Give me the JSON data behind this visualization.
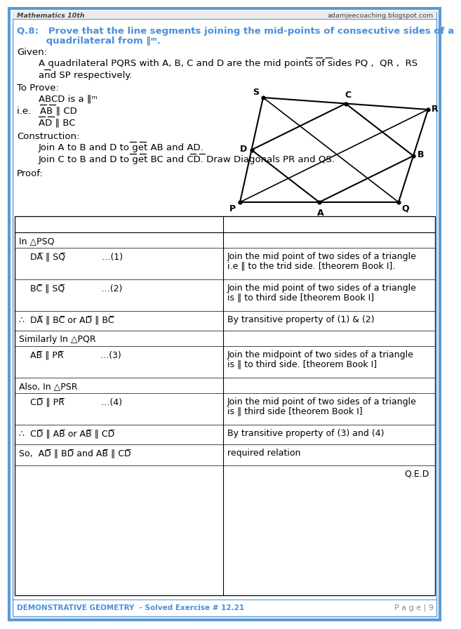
{
  "header_left": "Mathematics 10th",
  "header_right": "adamjeecoaching.blogspot.com",
  "footer_left": "DEMONSTRATIVE GEOMETRY  - Solved Exercise # 12.21",
  "footer_right": "P a g e | 9",
  "title_color": "#4a90d9",
  "border_color": "#5b9bd5",
  "bg_color": "#ffffff",
  "q_line1": "Q.8:   Prove that the line segments joining the mid-points of consecutive sides of a",
  "q_line2": "         quadrilateral from ‖ᵐ.",
  "rows": [
    {
      "stmt": "In △PSQ",
      "rsn": "",
      "sh": 22
    },
    {
      "stmt": "    DA̅ ∥ SQ̅             …(1)",
      "rsn": "Join the mid point of two sides of a triangle\ni.e ∥ to the trid side. [theorem Book I].",
      "sh": 45
    },
    {
      "stmt": "    BC̅ ∥ SQ̅             …(2)",
      "rsn": "Join the mid point of two sides of a triangle\nis ∥ to third side [theorem Book I]",
      "sh": 45
    },
    {
      "stmt": "∴  DA̅ ∥ BC̅ or AD̅ ∥ BC̅",
      "rsn": "By transitive property of (1) & (2)",
      "sh": 28
    },
    {
      "stmt": "Similarly In △PQR",
      "rsn": "",
      "sh": 22
    },
    {
      "stmt": "    AB̅ ∥ PR̅             …(3)",
      "rsn": "Join the midpoint of two sides of a triangle\nis ∥ to third side. [theorem Book I]",
      "sh": 45
    },
    {
      "stmt": "Also, In △PSR",
      "rsn": "",
      "sh": 22
    },
    {
      "stmt": "    CD̅ ∥ PR̅             …(4)",
      "rsn": "Join the mid point of two sides of a triangle\nis ∥ third side [theorem Book I]",
      "sh": 45
    },
    {
      "stmt": "∴  CD̅ ∥ AB̅ or AB̅ ∥ CD̅",
      "rsn": "By transitive property of (3) and (4)",
      "sh": 28
    },
    {
      "stmt": "So,  AD̅ ∥ BD̅ and AB̅ ∥ CD̅",
      "rsn": "required relation",
      "sh": 30
    },
    {
      "stmt": "",
      "rsn": "Q.E.D",
      "sh": 30
    }
  ]
}
